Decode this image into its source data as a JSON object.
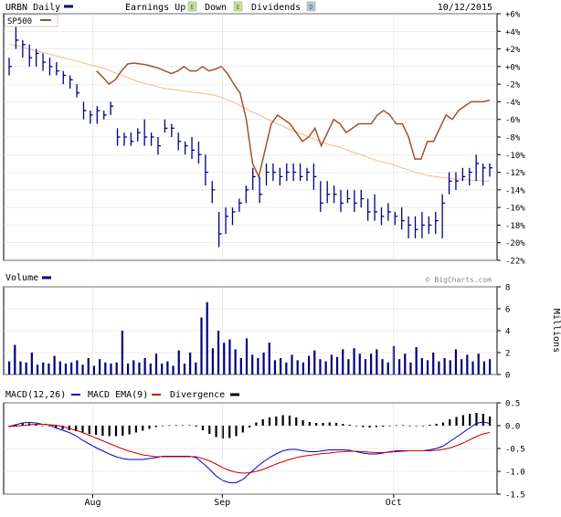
{
  "header": {
    "symbol_label": "URBN Daily",
    "earnings_up": "Earnings Up",
    "earnings_down": "Down",
    "dividends": "Dividends",
    "date": "10/12/2015",
    "comparison_label": "SP500",
    "watermark": "© BigCharts.com"
  },
  "colors": {
    "price_bars": "#000080",
    "sp500_line": "#a0522d",
    "moving_avg": "#f5b98a",
    "volume_bars": "#000080",
    "macd_line": "#0000cc",
    "ema_line": "#cc0000",
    "divergence": "#000000",
    "grid": "#d8d8d8",
    "earnings_up_badge": "#c8e0a0",
    "earnings_down_badge": "#c8e0a0",
    "dividends_badge": "#b8c8d8"
  },
  "chart_data": [
    {
      "type": "bar",
      "panel": "price",
      "title": "URBN Daily",
      "y_unit": "percent change",
      "ylim": [
        -22,
        6
      ],
      "yticks": [
        "+6%",
        "+4%",
        "+2%",
        "+0%",
        "-2%",
        "-4%",
        "-6%",
        "-8%",
        "-10%",
        "-12%",
        "-14%",
        "-16%",
        "-18%",
        "-20%",
        "-22%"
      ],
      "xticks": [
        "Aug",
        "Sep",
        "Oct"
      ],
      "grid": true,
      "price_bars": [
        [
          1.0,
          -1.0,
          0.0
        ],
        [
          4.5,
          2.0,
          3.0
        ],
        [
          3.0,
          1.0,
          2.5
        ],
        [
          2.5,
          0.0,
          1.0
        ],
        [
          2.0,
          0.0,
          1.5
        ],
        [
          1.5,
          -0.5,
          0.5
        ],
        [
          1.0,
          -1.0,
          0.0
        ],
        [
          0.5,
          -1.0,
          -0.5
        ],
        [
          -0.5,
          -2.0,
          -1.0
        ],
        [
          -1.0,
          -2.5,
          -1.5
        ],
        [
          -2.0,
          -3.5,
          -3.0
        ],
        [
          -4.0,
          -6.0,
          -5.0
        ],
        [
          -5.0,
          -6.5,
          -5.5
        ],
        [
          -4.5,
          -6.5,
          -5.0
        ],
        [
          -5.0,
          -6.0,
          -5.5
        ],
        [
          -4.0,
          -5.5,
          -4.5
        ],
        [
          -7.0,
          -9.0,
          -8.0
        ],
        [
          -7.5,
          -9.0,
          -8.0
        ],
        [
          -7.5,
          -9.0,
          -8.5
        ],
        [
          -7.0,
          -8.5,
          -7.5
        ],
        [
          -6.0,
          -9.0,
          -8.0
        ],
        [
          -7.5,
          -9.0,
          -8.0
        ],
        [
          -8.0,
          -10.0,
          -9.0
        ],
        [
          -6.0,
          -7.5,
          -7.0
        ],
        [
          -6.5,
          -8.0,
          -7.0
        ],
        [
          -7.5,
          -9.5,
          -8.5
        ],
        [
          -8.5,
          -10.0,
          -9.0
        ],
        [
          -8.0,
          -10.5,
          -9.5
        ],
        [
          -8.5,
          -11.0,
          -10.0
        ],
        [
          -10.0,
          -13.5,
          -12.0
        ],
        [
          -13.0,
          -15.5,
          -14.0
        ],
        [
          -16.5,
          -20.5,
          -19.0
        ],
        [
          -16.0,
          -19.0,
          -17.0
        ],
        [
          -16.0,
          -18.0,
          -16.5
        ],
        [
          -15.0,
          -16.5,
          -15.5
        ],
        [
          -13.5,
          -15.5,
          -14.0
        ],
        [
          -11.5,
          -14.0,
          -12.5
        ],
        [
          -12.5,
          -15.5,
          -14.5
        ],
        [
          -11.0,
          -13.5,
          -12.0
        ],
        [
          -11.0,
          -13.0,
          -12.0
        ],
        [
          -11.5,
          -13.5,
          -12.5
        ],
        [
          -11.0,
          -13.0,
          -12.0
        ],
        [
          -11.0,
          -13.0,
          -12.0
        ],
        [
          -11.0,
          -13.0,
          -12.5
        ],
        [
          -11.5,
          -13.0,
          -12.0
        ],
        [
          -11.0,
          -14.0,
          -12.5
        ],
        [
          -13.0,
          -16.5,
          -15.5
        ],
        [
          -13.0,
          -15.5,
          -14.5
        ],
        [
          -13.5,
          -15.5,
          -14.5
        ],
        [
          -14.0,
          -16.5,
          -15.5
        ],
        [
          -14.0,
          -15.5,
          -15.0
        ],
        [
          -14.0,
          -16.5,
          -15.5
        ],
        [
          -14.0,
          -16.0,
          -15.0
        ],
        [
          -15.0,
          -17.5,
          -16.5
        ],
        [
          -14.5,
          -17.5,
          -16.5
        ],
        [
          -16.0,
          -18.0,
          -17.0
        ],
        [
          -15.5,
          -17.5,
          -16.5
        ],
        [
          -16.5,
          -18.0,
          -17.0
        ],
        [
          -16.0,
          -18.5,
          -17.5
        ],
        [
          -17.0,
          -19.5,
          -18.0
        ],
        [
          -17.0,
          -19.5,
          -18.5
        ],
        [
          -16.5,
          -19.5,
          -18.0
        ],
        [
          -17.0,
          -19.0,
          -18.0
        ],
        [
          -16.5,
          -19.0,
          -17.5
        ],
        [
          -14.5,
          -19.5,
          -15.5
        ],
        [
          -12.0,
          -14.5,
          -13.0
        ],
        [
          -12.0,
          -14.0,
          -13.0
        ],
        [
          -11.5,
          -13.0,
          -12.5
        ],
        [
          -11.5,
          -13.5,
          -12.0
        ],
        [
          -10.0,
          -13.0,
          -11.0
        ],
        [
          -11.0,
          -13.5,
          -11.5
        ],
        [
          -11.0,
          -12.5,
          -11.5
        ]
      ],
      "moving_average": [
        2.5,
        2.4,
        2.2,
        2.0,
        1.8,
        1.6,
        1.4,
        1.2,
        1.0,
        0.8,
        0.6,
        0.4,
        0.2,
        0.0,
        -0.2,
        -0.5,
        -0.8,
        -1.1,
        -1.4,
        -1.7,
        -1.9,
        -2.1,
        -2.3,
        -2.5,
        -2.6,
        -2.7,
        -2.8,
        -2.9,
        -3.0,
        -3.1,
        -3.2,
        -3.4,
        -3.7,
        -4.0,
        -4.4,
        -4.8,
        -5.2,
        -5.5,
        -5.9,
        -6.3,
        -6.6,
        -7.0,
        -7.3,
        -7.6,
        -7.9,
        -8.2,
        -8.5,
        -8.8,
        -9.0,
        -9.2,
        -9.5,
        -9.8,
        -10.0,
        -10.3,
        -10.6,
        -10.8,
        -11.0,
        -11.2,
        -11.5,
        -11.7,
        -12.0,
        -12.2,
        -12.4,
        -12.5,
        -12.6,
        -12.7,
        -12.8,
        -12.8,
        -12.9,
        -12.9,
        -13.0,
        -13.0
      ]
    },
    {
      "type": "line",
      "panel": "price",
      "series": [
        {
          "name": "SP500",
          "values": [
            null,
            null,
            null,
            null,
            null,
            null,
            null,
            null,
            null,
            null,
            null,
            null,
            null,
            null,
            -0.5,
            -1.2,
            -2.0,
            -1.5,
            -0.5,
            0.3,
            0.4,
            0.3,
            0.2,
            0.0,
            -0.2,
            -0.5,
            -0.8,
            -0.5,
            0.0,
            -0.5,
            -0.5,
            0.0,
            -0.5,
            -0.3,
            0.0,
            -0.8,
            -2.0,
            -3.0,
            -6.0,
            -11.0,
            -12.5,
            -9.5,
            -6.5,
            -5.5,
            -6.0,
            -6.5,
            -7.5,
            -8.5,
            -8.0,
            -7.0,
            -9.0,
            -7.5,
            -6.0,
            -6.5,
            -7.5,
            -7.0,
            -6.5,
            -6.5,
            -6.5,
            -5.5,
            -5.0,
            -5.5,
            -6.5,
            -6.5,
            -8.0,
            -10.5,
            -10.5,
            -8.5,
            -8.5,
            -7.0,
            -5.5,
            -6.0,
            -5.0,
            -4.5,
            -4.0,
            -4.0,
            -4.0,
            -3.8
          ]
        }
      ]
    },
    {
      "type": "bar",
      "panel": "volume",
      "title": "Volume",
      "ylabel": "Millions",
      "ylim": [
        0,
        8
      ],
      "yticks": [
        "0",
        "2",
        "4",
        "6",
        "8"
      ],
      "values": [
        1.2,
        2.7,
        1.2,
        1.1,
        2.0,
        0.9,
        1.1,
        1.0,
        1.7,
        1.2,
        1.0,
        1.1,
        1.3,
        0.9,
        1.5,
        0.8,
        1.4,
        1.1,
        1.0,
        1.1,
        4.0,
        1.0,
        1.3,
        1.1,
        1.5,
        1.0,
        1.9,
        1.0,
        1.2,
        0.8,
        2.2,
        1.0,
        2.0,
        1.1,
        5.2,
        6.6,
        2.4,
        4.0,
        2.9,
        3.2,
        2.3,
        1.5,
        3.3,
        1.8,
        1.5,
        2.0,
        2.9,
        1.3,
        1.5,
        1.1,
        1.8,
        1.3,
        1.1,
        1.7,
        2.2,
        1.4,
        1.2,
        1.8,
        1.6,
        2.3,
        1.4,
        2.4,
        1.9,
        1.4,
        1.9,
        2.3,
        1.4,
        1.1,
        2.6,
        1.4,
        1.9,
        1.1,
        2.5,
        1.5,
        1.3,
        2.0,
        1.2,
        1.5,
        1.3,
        2.3,
        1.4,
        1.8,
        1.2,
        1.9,
        1.2,
        1.4
      ]
    },
    {
      "type": "line",
      "panel": "macd",
      "title": "MACD(12,26)",
      "ylim": [
        -1.5,
        0.5
      ],
      "yticks": [
        "0.5",
        "0.0",
        "-0.5",
        "-1.0",
        "-1.5"
      ],
      "xticks": [
        "Aug",
        "Sep",
        "Oct"
      ],
      "legend": [
        "MACD(12,26)",
        "MACD EMA(9)",
        "Divergence"
      ],
      "series": [
        {
          "name": "MACD(12,26)",
          "values": [
            -0.02,
            0.02,
            0.06,
            0.07,
            0.06,
            0.03,
            0.02,
            -0.05,
            -0.1,
            -0.15,
            -0.22,
            -0.32,
            -0.4,
            -0.48,
            -0.55,
            -0.62,
            -0.68,
            -0.72,
            -0.74,
            -0.74,
            -0.74,
            -0.72,
            -0.7,
            -0.67,
            -0.67,
            -0.67,
            -0.67,
            -0.67,
            -0.7,
            -0.82,
            -0.95,
            -1.1,
            -1.2,
            -1.25,
            -1.25,
            -1.18,
            -1.05,
            -0.92,
            -0.8,
            -0.7,
            -0.62,
            -0.55,
            -0.52,
            -0.52,
            -0.55,
            -0.57,
            -0.57,
            -0.55,
            -0.53,
            -0.53,
            -0.53,
            -0.54,
            -0.57,
            -0.6,
            -0.62,
            -0.62,
            -0.6,
            -0.57,
            -0.55,
            -0.55,
            -0.55,
            -0.55,
            -0.55,
            -0.53,
            -0.5,
            -0.45,
            -0.35,
            -0.25,
            -0.15,
            -0.05,
            0.05,
            0.08,
            0.05
          ]
        },
        {
          "name": "MACD EMA(9)",
          "values": [
            -0.02,
            -0.01,
            0.0,
            0.02,
            0.03,
            0.03,
            0.02,
            0.01,
            -0.02,
            -0.06,
            -0.1,
            -0.15,
            -0.21,
            -0.27,
            -0.33,
            -0.39,
            -0.45,
            -0.51,
            -0.56,
            -0.6,
            -0.64,
            -0.66,
            -0.68,
            -0.68,
            -0.68,
            -0.68,
            -0.68,
            -0.68,
            -0.68,
            -0.72,
            -0.77,
            -0.84,
            -0.92,
            -0.98,
            -1.02,
            -1.04,
            -1.03,
            -1.0,
            -0.96,
            -0.9,
            -0.84,
            -0.79,
            -0.74,
            -0.7,
            -0.67,
            -0.65,
            -0.63,
            -0.61,
            -0.6,
            -0.58,
            -0.57,
            -0.56,
            -0.56,
            -0.57,
            -0.58,
            -0.59,
            -0.59,
            -0.58,
            -0.57,
            -0.56,
            -0.55,
            -0.55,
            -0.55,
            -0.55,
            -0.54,
            -0.52,
            -0.49,
            -0.44,
            -0.38,
            -0.31,
            -0.24,
            -0.18,
            -0.15
          ]
        },
        {
          "name": "Divergence",
          "values": [
            0.0,
            0.03,
            0.06,
            0.05,
            0.03,
            0.0,
            -0.01,
            -0.05,
            -0.08,
            -0.1,
            -0.12,
            -0.15,
            -0.18,
            -0.2,
            -0.22,
            -0.23,
            -0.23,
            -0.22,
            -0.19,
            -0.15,
            -0.11,
            -0.07,
            -0.03,
            0.0,
            0.01,
            0.01,
            0.01,
            0.01,
            -0.02,
            -0.1,
            -0.18,
            -0.25,
            -0.28,
            -0.27,
            -0.23,
            -0.15,
            -0.04,
            0.07,
            0.14,
            0.18,
            0.2,
            0.23,
            0.22,
            0.18,
            0.12,
            0.08,
            0.06,
            0.06,
            0.07,
            0.06,
            0.04,
            0.02,
            -0.01,
            -0.03,
            -0.04,
            -0.03,
            -0.02,
            0.0,
            0.01,
            0.01,
            0.0,
            0.0,
            0.0,
            0.02,
            0.04,
            0.07,
            0.14,
            0.19,
            0.23,
            0.26,
            0.28,
            0.26,
            0.2
          ]
        }
      ]
    }
  ]
}
